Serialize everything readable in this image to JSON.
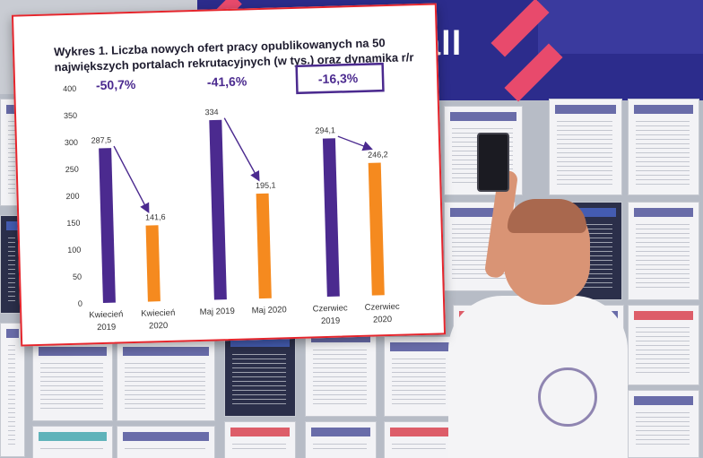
{
  "chart_data": {
    "type": "bar",
    "title": "Wykres 1. Liczba nowych ofert pracy opublikowanych na 50 największych portalach rekrutacyjnych (w tys.) oraz dynamika r/r",
    "categories": [
      [
        "Kwiecień",
        "2019"
      ],
      [
        "Kwiecień",
        "2020"
      ],
      [
        "Maj 2019"
      ],
      [
        "Maj 2020"
      ],
      [
        "Czerwiec",
        "2019"
      ],
      [
        "Czerwiec",
        "2020"
      ]
    ],
    "values": [
      287.5,
      141.6,
      334,
      195.1,
      294.1,
      246.2
    ],
    "value_labels": [
      "287,5",
      "141,6",
      "334",
      "195,1",
      "294,1",
      "246,2"
    ],
    "dynamics": [
      "-50,7%",
      "-41,6%",
      "-16,3%"
    ],
    "highlighted_dynamic_index": 2,
    "yticks": [
      "400",
      "350",
      "300",
      "250",
      "200",
      "150",
      "100",
      "50",
      "0"
    ],
    "ylim": [
      0,
      400
    ],
    "grid": false,
    "colors": {
      "year_2019": "#4b2a8f",
      "year_2020": "#f58a1f",
      "dynamic_text": "#4b2a8f",
      "arrow": "#4b2a8f",
      "frame": "#e5252c"
    }
  },
  "background": {
    "banner_text": "all"
  }
}
